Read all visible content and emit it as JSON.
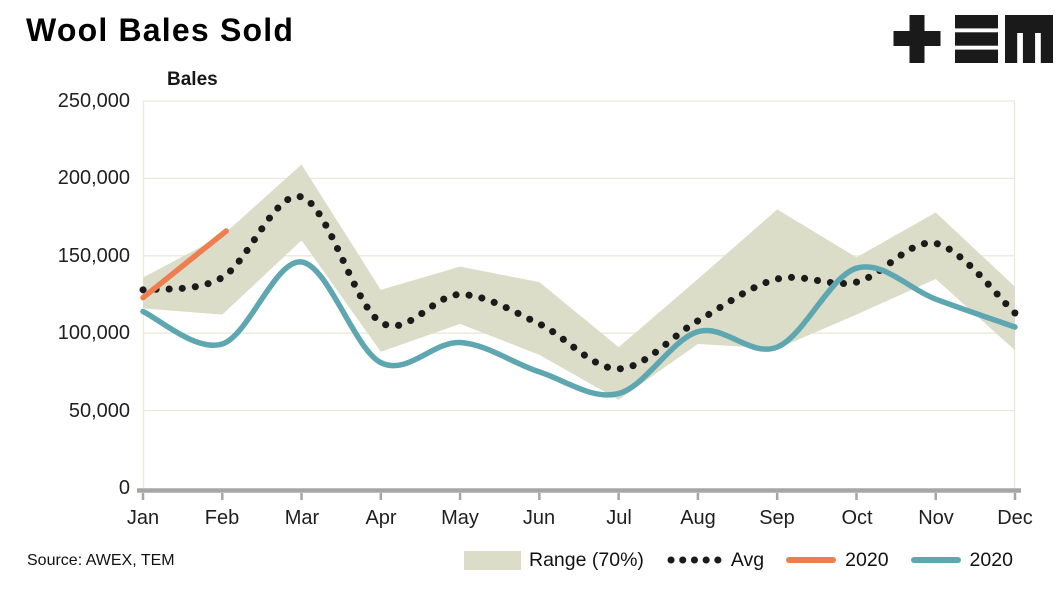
{
  "header": {
    "title": "Wool Bales Sold",
    "logo": "TEM"
  },
  "source_note": "Source: AWEX, TEM",
  "chart_data": {
    "type": "line",
    "title": "Wool Bales Sold",
    "y_axis_title": "Bales",
    "categories": [
      "Jan",
      "Feb",
      "Mar",
      "Apr",
      "May",
      "Jun",
      "Jul",
      "Aug",
      "Sep",
      "Oct",
      "Nov",
      "Dec"
    ],
    "ylim": [
      0,
      250000
    ],
    "ytick_step": 50000,
    "ytick_labels": [
      "250,000",
      "200,000",
      "150,000",
      "100,000",
      "50,000",
      "0"
    ],
    "grid": true,
    "legend_position": "bottom",
    "grid_color": "#E9E9DB",
    "axis_color": "#A6A6A6",
    "series": [
      {
        "name": "Range (70%)",
        "type": "band",
        "color": "#DBDDC9",
        "low": [
          116000,
          112000,
          160000,
          88000,
          106000,
          86000,
          57000,
          93000,
          90000,
          112000,
          135000,
          89000
        ],
        "high": [
          136000,
          163000,
          209000,
          128000,
          143000,
          133000,
          91000,
          135000,
          180000,
          149000,
          178000,
          130000
        ]
      },
      {
        "name": "Avg",
        "type": "dotted-line",
        "color": "#1B1B1B",
        "values": [
          128000,
          136000,
          188000,
          107000,
          125000,
          106000,
          77000,
          108000,
          135000,
          133000,
          158000,
          113000
        ]
      },
      {
        "name": "2020",
        "type": "line",
        "color": "#EE7E4F",
        "x": [
          0,
          1.05
        ],
        "values": [
          123000,
          166000
        ]
      },
      {
        "name": "2020",
        "type": "line",
        "color": "#5FA7B0",
        "values": [
          114000,
          93000,
          146000,
          81000,
          94000,
          75000,
          61000,
          101000,
          91000,
          142000,
          122000,
          104000
        ]
      }
    ]
  }
}
